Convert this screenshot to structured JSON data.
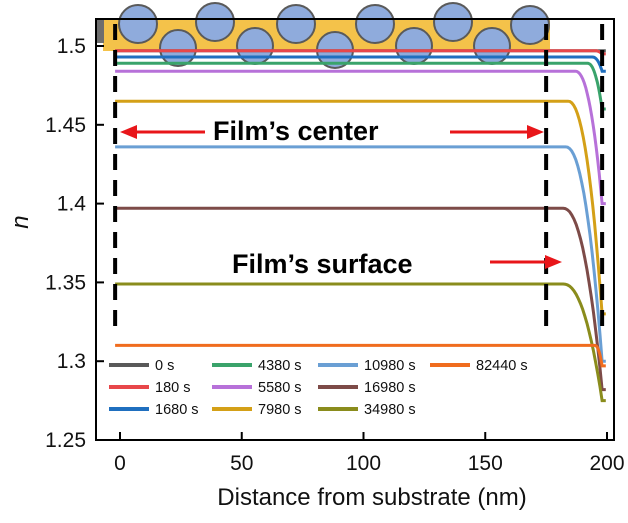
{
  "chart_data": {
    "type": "line",
    "xlabel": "Distance from substrate (nm)",
    "ylabel": "n",
    "xlim": [
      -5,
      200
    ],
    "ylim": [
      1.25,
      1.52
    ],
    "x_ticks": [
      "0",
      "50",
      "100",
      "150",
      "200"
    ],
    "y_ticks": [
      "1.25",
      "1.3",
      "1.35",
      "1.4",
      "1.45",
      "1.5"
    ],
    "grid": false,
    "legend_position": "bottom-inside",
    "annotations": {
      "center": "Film’s center",
      "surface": "Film’s surface"
    },
    "boundaries_x": [
      -2,
      175,
      198
    ],
    "series": [
      {
        "name": "0 s",
        "color": "#595959",
        "n_center": 1.497,
        "n_surface": 1.497,
        "knee": 198
      },
      {
        "name": "180 s",
        "color": "#e8474a",
        "n_center": 1.497,
        "n_surface": 1.495,
        "knee": 195
      },
      {
        "name": "1680 s",
        "color": "#1f6fbf",
        "n_center": 1.493,
        "n_surface": 1.484,
        "knee": 194
      },
      {
        "name": "4380 s",
        "color": "#3aa36b",
        "n_center": 1.489,
        "n_surface": 1.46,
        "knee": 192
      },
      {
        "name": "5580 s",
        "color": "#b771d9",
        "n_center": 1.484,
        "n_surface": 1.4,
        "knee": 187
      },
      {
        "name": "7980 s",
        "color": "#d4a017",
        "n_center": 1.465,
        "n_surface": 1.33,
        "knee": 184
      },
      {
        "name": "10980 s",
        "color": "#6a9fd4",
        "n_center": 1.436,
        "n_surface": 1.3,
        "knee": 183
      },
      {
        "name": "16980 s",
        "color": "#7d4b48",
        "n_center": 1.397,
        "n_surface": 1.282,
        "knee": 182
      },
      {
        "name": "34980 s",
        "color": "#8a8c1c",
        "n_center": 1.349,
        "n_surface": 1.275,
        "knee": 182
      },
      {
        "name": "82440 s",
        "color": "#f06c1e",
        "n_center": 1.31,
        "n_surface": 1.297,
        "knee": 195
      }
    ]
  }
}
